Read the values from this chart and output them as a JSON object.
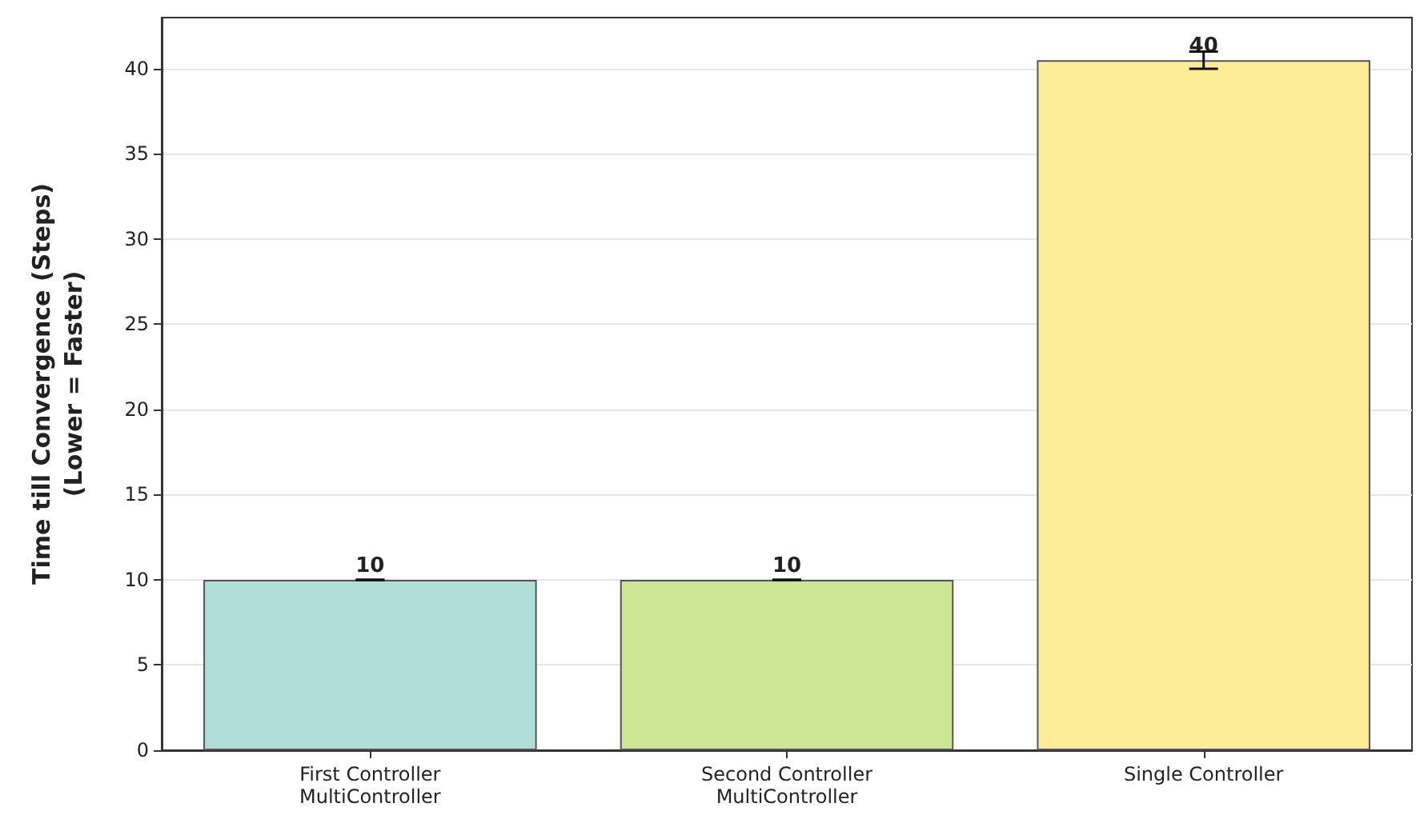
{
  "chart_data": {
    "type": "bar",
    "ylabel": "Time till Convergence (Steps)\n(Lower = Faster)",
    "categories": [
      "First Controller\nMultiController",
      "Second Controller\nMultiController",
      "Single Controller"
    ],
    "values": [
      10,
      10,
      40.5
    ],
    "errors": [
      0,
      0,
      0.5
    ],
    "colors": [
      "#afdfd8",
      "#cbe695",
      "#fdec96"
    ],
    "value_labels": [
      "10",
      "10",
      "40"
    ],
    "ylim": [
      0,
      43
    ],
    "yticks": [
      0,
      5,
      10,
      15,
      20,
      25,
      30,
      35,
      40
    ],
    "grid": "y"
  }
}
